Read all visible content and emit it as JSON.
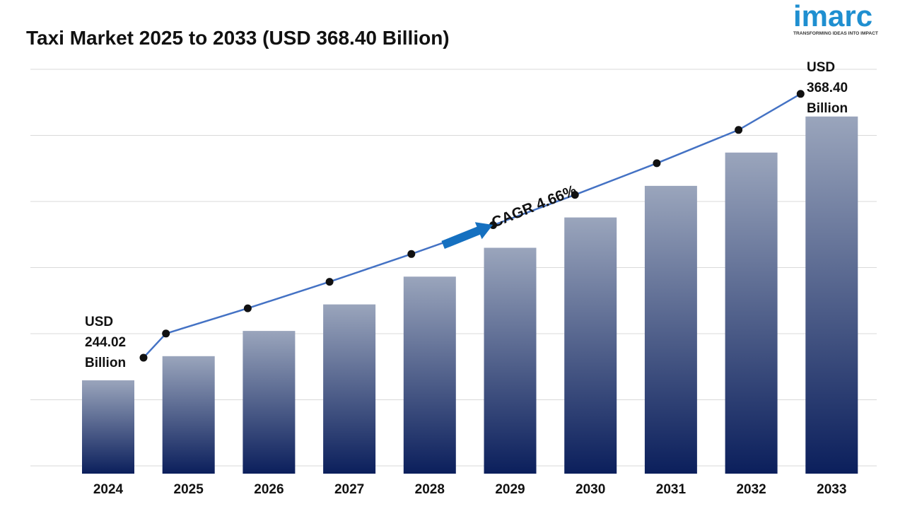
{
  "header": {
    "title": "Taxi Market 2025 to 2033 (USD 368.40 Billion)"
  },
  "logo": {
    "word": "imarc",
    "tagline": "TRANSFORMING IDEAS INTO IMPACT",
    "color": "#1f8fd0"
  },
  "chart_data": {
    "type": "bar",
    "title": "Taxi Market 2025 to 2033 (USD 368.40 Billion)",
    "xlabel": "",
    "ylabel": "",
    "categories": [
      "2024",
      "2025",
      "2026",
      "2027",
      "2028",
      "2029",
      "2030",
      "2031",
      "2032",
      "2033"
    ],
    "series": [
      {
        "values": [
          244.02,
          255.4,
          267.3,
          279.8,
          292.9,
          306.5,
          320.8,
          335.7,
          351.4,
          368.4
        ]
      }
    ],
    "ylim": [
      200,
      380
    ],
    "grid": true,
    "line_overlay": true,
    "annotations": {
      "start_label": [
        "USD",
        "244.02",
        "Billion"
      ],
      "end_label": [
        "USD",
        "368.40",
        "Billion"
      ],
      "cagr": "CAGR 4.66%"
    },
    "colors": {
      "bar_top": "#9aa5bc",
      "bar_bottom": "#0b1f5c",
      "line": "#4472c4",
      "marker": "#111111",
      "arrow": "#1570c0",
      "grid": "#d9d9d9"
    }
  }
}
